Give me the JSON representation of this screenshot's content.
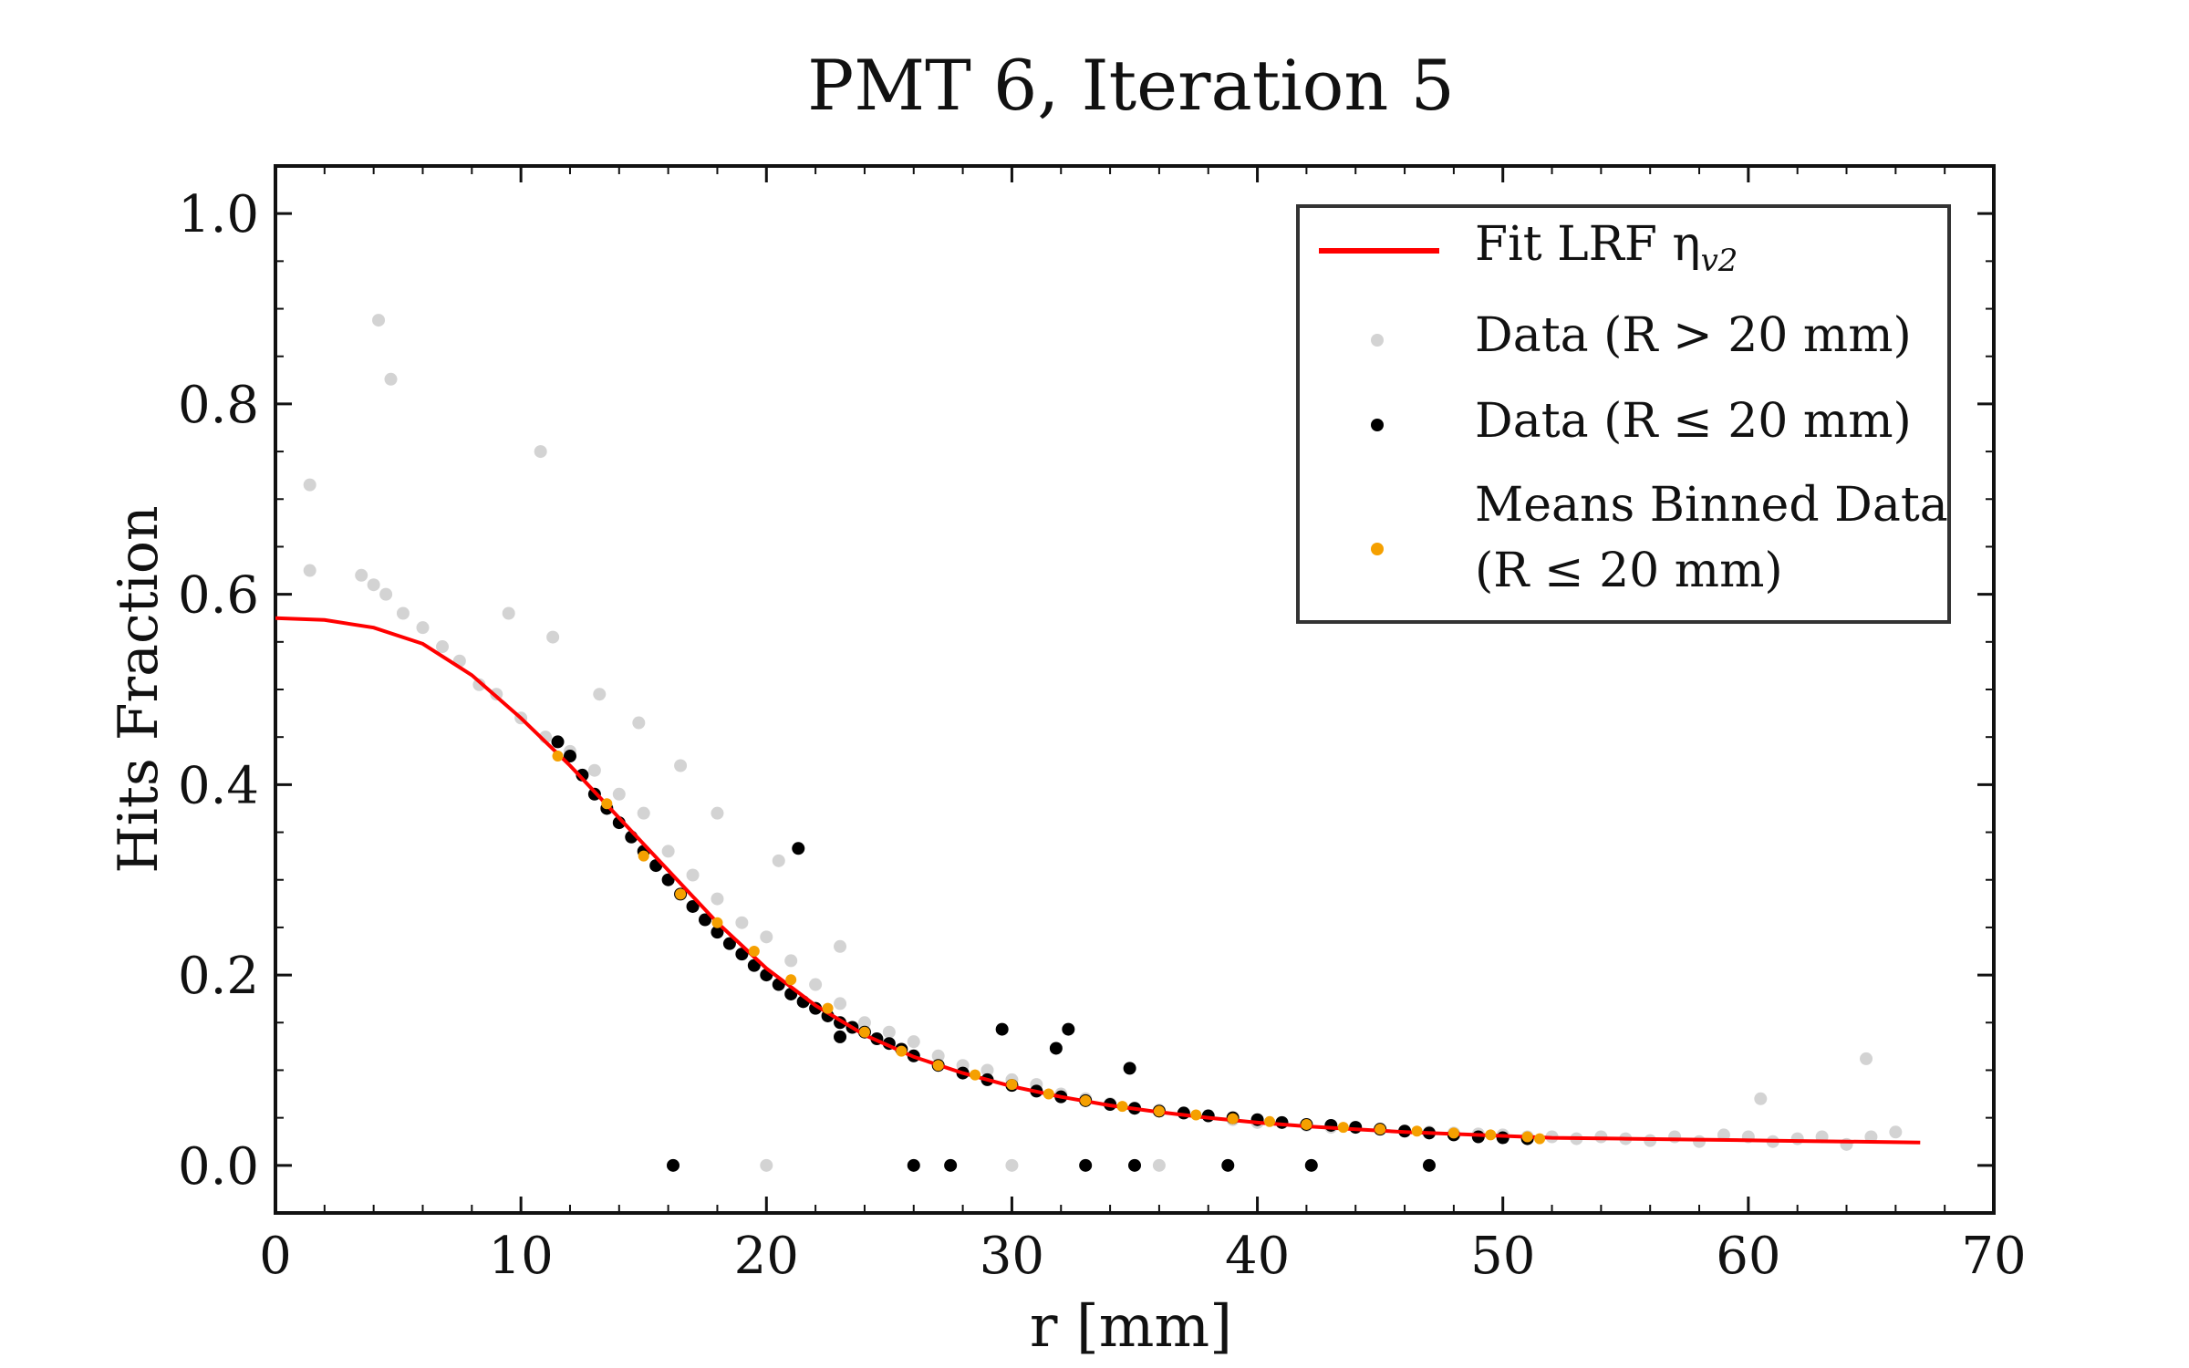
{
  "chart_data": {
    "type": "scatter",
    "title": "PMT 6, Iteration 5",
    "xlabel": "r [mm]",
    "ylabel": "Hits Fraction",
    "xlim": [
      0,
      70
    ],
    "ylim": [
      -0.05,
      1.05
    ],
    "xticks": [
      0,
      10,
      20,
      30,
      40,
      50,
      60,
      70
    ],
    "xtick_labels": [
      "0",
      "10",
      "20",
      "30",
      "40",
      "50",
      "60",
      "70"
    ],
    "yticks": [
      0.0,
      0.2,
      0.4,
      0.6,
      0.8,
      1.0
    ],
    "ytick_labels": [
      "0.0",
      "0.2",
      "0.4",
      "0.6",
      "0.8",
      "1.0"
    ],
    "grid": false,
    "legend_position": "top-right",
    "legend": [
      {
        "label": "Fit LRF η",
        "subscript": "v2",
        "marker": "line",
        "color": "#ff0000"
      },
      {
        "label": "Data (R > 20 mm)",
        "marker": "dot",
        "color": "#d3d3d3"
      },
      {
        "label": "Data (R ≤ 20 mm)",
        "marker": "dot",
        "color": "#000000"
      },
      {
        "label": "Means Binned Data",
        "label2": "(R ≤ 20 mm)",
        "marker": "dot",
        "color": "#f5a000"
      }
    ],
    "series": [
      {
        "name": "Fit LRF η_v2",
        "kind": "line",
        "color": "#ff0000",
        "x": [
          0,
          2,
          4,
          6,
          8,
          10,
          12,
          14,
          16,
          18,
          20,
          22,
          24,
          26,
          28,
          30,
          32,
          34,
          36,
          38,
          40,
          42,
          44,
          46,
          48,
          50,
          52,
          55,
          58,
          61,
          64,
          67
        ],
        "y": [
          0.575,
          0.573,
          0.565,
          0.548,
          0.515,
          0.47,
          0.42,
          0.365,
          0.31,
          0.255,
          0.207,
          0.168,
          0.137,
          0.114,
          0.097,
          0.083,
          0.072,
          0.063,
          0.056,
          0.05,
          0.045,
          0.041,
          0.038,
          0.035,
          0.033,
          0.031,
          0.029,
          0.028,
          0.027,
          0.026,
          0.025,
          0.024
        ]
      },
      {
        "name": "Data (R > 20 mm)",
        "kind": "scatter",
        "color": "#d3d3d3",
        "x": [
          1.4,
          1.4,
          4.2,
          4.7,
          10.8,
          3.5,
          4.0,
          4.5,
          5.2,
          6.0,
          6.8,
          7.5,
          8.3,
          9.0,
          10.0,
          11.0,
          12.0,
          13.0,
          14.0,
          15.0,
          16.0,
          17.0,
          18.0,
          19.0,
          20.0,
          21.0,
          22.0,
          23.0,
          24.0,
          25.0,
          26.0,
          27.0,
          28.0,
          29.0,
          30.0,
          31.0,
          32.0,
          33.0,
          34.0,
          35.0,
          36.0,
          37.0,
          38.0,
          39.0,
          40.0,
          41.0,
          42.0,
          43.0,
          44.0,
          45.0,
          46.0,
          47.0,
          48.0,
          49.0,
          50.0,
          51.0,
          52.0,
          53.0,
          54.0,
          55.0,
          56.0,
          57.0,
          58.0,
          59.0,
          60.0,
          61.0,
          62.0,
          63.0,
          64.0,
          65.0,
          66.0,
          64.8,
          60.5,
          9.5,
          11.3,
          13.2,
          14.8,
          16.5,
          18.0,
          20.5,
          23.0,
          20.0,
          30.0,
          36.0
        ],
        "y": [
          0.715,
          0.625,
          0.888,
          0.826,
          0.75,
          0.62,
          0.61,
          0.6,
          0.58,
          0.565,
          0.545,
          0.53,
          0.505,
          0.495,
          0.47,
          0.45,
          0.435,
          0.415,
          0.39,
          0.37,
          0.33,
          0.305,
          0.28,
          0.255,
          0.24,
          0.215,
          0.19,
          0.17,
          0.15,
          0.14,
          0.13,
          0.115,
          0.105,
          0.1,
          0.09,
          0.085,
          0.075,
          0.07,
          0.065,
          0.06,
          0.058,
          0.055,
          0.052,
          0.048,
          0.045,
          0.045,
          0.042,
          0.04,
          0.04,
          0.038,
          0.036,
          0.035,
          0.034,
          0.033,
          0.032,
          0.03,
          0.03,
          0.028,
          0.03,
          0.028,
          0.026,
          0.03,
          0.025,
          0.032,
          0.03,
          0.025,
          0.028,
          0.03,
          0.022,
          0.03,
          0.035,
          0.112,
          0.07,
          0.58,
          0.555,
          0.495,
          0.465,
          0.42,
          0.37,
          0.32,
          0.23,
          0.0,
          0.0,
          0.0
        ]
      },
      {
        "name": "Data (R ≤ 20 mm)",
        "kind": "scatter",
        "color": "#000000",
        "x": [
          11.5,
          12.0,
          12.5,
          13.0,
          13.5,
          14.0,
          14.5,
          15.0,
          15.5,
          16.0,
          16.5,
          17.0,
          17.5,
          18.0,
          18.5,
          19.0,
          19.5,
          20.0,
          20.5,
          21.0,
          21.5,
          22.0,
          22.5,
          23.0,
          23.5,
          24.0,
          24.5,
          25.0,
          25.5,
          26.0,
          27.0,
          28.0,
          29.0,
          30.0,
          31.0,
          32.0,
          33.0,
          34.0,
          35.0,
          36.0,
          37.0,
          38.0,
          39.0,
          40.0,
          41.0,
          42.0,
          43.0,
          44.0,
          45.0,
          46.0,
          47.0,
          48.0,
          49.0,
          50.0,
          51.0,
          21.3,
          29.6,
          32.3,
          31.8,
          34.8,
          23.0,
          16.2,
          26.0,
          27.5,
          33.0,
          35.0,
          38.8,
          42.2,
          47.0
        ],
        "y": [
          0.445,
          0.43,
          0.41,
          0.39,
          0.375,
          0.36,
          0.345,
          0.33,
          0.315,
          0.3,
          0.285,
          0.272,
          0.258,
          0.245,
          0.233,
          0.222,
          0.21,
          0.2,
          0.19,
          0.18,
          0.172,
          0.165,
          0.157,
          0.15,
          0.145,
          0.14,
          0.133,
          0.128,
          0.122,
          0.115,
          0.105,
          0.097,
          0.09,
          0.084,
          0.078,
          0.072,
          0.068,
          0.064,
          0.06,
          0.057,
          0.055,
          0.052,
          0.05,
          0.048,
          0.045,
          0.043,
          0.042,
          0.04,
          0.038,
          0.036,
          0.034,
          0.032,
          0.03,
          0.029,
          0.028,
          0.333,
          0.143,
          0.143,
          0.123,
          0.102,
          0.135,
          0.0,
          0.0,
          0.0,
          0.0,
          0.0,
          0.0,
          0.0,
          0.0
        ]
      },
      {
        "name": "Means Binned Data (R ≤ 20 mm)",
        "kind": "scatter",
        "color": "#f5a000",
        "x": [
          11.5,
          13.5,
          15.0,
          16.5,
          18.0,
          19.5,
          21.0,
          22.5,
          24.0,
          25.5,
          27.0,
          28.5,
          30.0,
          31.5,
          33.0,
          34.5,
          36.0,
          37.5,
          39.0,
          40.5,
          42.0,
          43.5,
          45.0,
          46.5,
          48.0,
          49.5,
          51.0,
          51.5
        ],
        "y": [
          0.43,
          0.38,
          0.325,
          0.285,
          0.255,
          0.225,
          0.195,
          0.165,
          0.14,
          0.12,
          0.105,
          0.095,
          0.085,
          0.075,
          0.068,
          0.062,
          0.057,
          0.053,
          0.049,
          0.046,
          0.043,
          0.04,
          0.038,
          0.036,
          0.034,
          0.032,
          0.03,
          0.028
        ]
      }
    ]
  }
}
